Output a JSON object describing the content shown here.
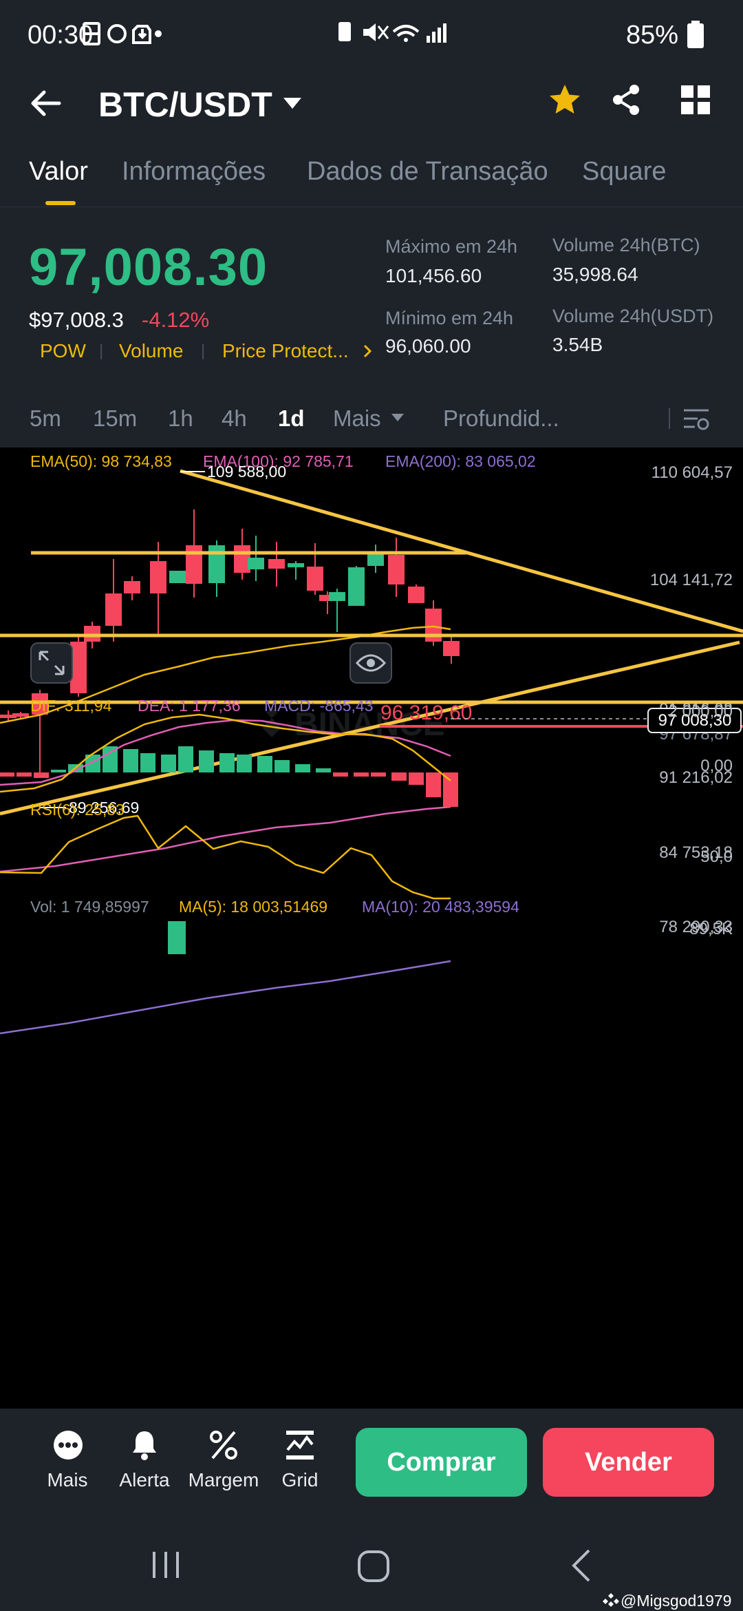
{
  "status_bar": {
    "time": "00:30",
    "battery": "85%"
  },
  "header": {
    "pair": "BTC/USDT"
  },
  "tabs": [
    {
      "label": "Valor",
      "active": true
    },
    {
      "label": "Informações"
    },
    {
      "label": "Dados de Transação"
    },
    {
      "label": "Square"
    }
  ],
  "summary": {
    "price": "97,008.30",
    "usd_price": "$97,008.3",
    "change": "-4.12%",
    "tags": [
      "POW",
      "Volume",
      "Price Protect..."
    ],
    "high_label": "Máximo em 24h",
    "high_value": "101,456.60",
    "low_label": "Mínimo em 24h",
    "low_value": "96,060.00",
    "vol_btc_label": "Volume 24h(BTC)",
    "vol_btc_value": "35,998.64",
    "vol_usdt_label": "Volume 24h(USDT)",
    "vol_usdt_value": "3.54B"
  },
  "intervals": [
    "5m",
    "15m",
    "1h",
    "4h",
    "1d",
    "Mais",
    "Profundid..."
  ],
  "active_interval": "1d",
  "chart_labels": {
    "ema50": "EMA(50): 98 734,83",
    "ema100": "EMA(100): 92 785,71",
    "ema200": "EMA(200): 83 065,02",
    "high_marker": "109 588,00",
    "low_marker": "89 256,69",
    "alert_price": "96 319,60",
    "last_price": "97 008,30",
    "axis_partial": "97 678,87",
    "y_axis": [
      "110 604,57",
      "104 141,72",
      "91 216,02",
      "84 753,18",
      "78 290,33"
    ],
    "watermark": "BINANCE",
    "dif": "DIF: 311,94",
    "dea": "DEA: 1 177,36",
    "macd": "MACD: -865,43",
    "macd_axis": [
      "2 000,00",
      "0,00"
    ],
    "rsi": "RSI(6): 25,83",
    "rsi_axis": "50,0",
    "vol": "Vol: 1 749,85997",
    "vol_ma5": "MA(5): 18 003,51469",
    "vol_ma10": "MA(10): 20 483,39594",
    "vol_axis": "89,5K"
  },
  "colors": {
    "up": "#2ebd85",
    "down": "#f6465d",
    "accent": "#f0b90b",
    "ema50": "#f0b90b",
    "ema100": "#e05fb5",
    "ema200": "#8e6fd0"
  },
  "bottom_nav": [
    "Mais",
    "Alerta",
    "Margem",
    "Grid"
  ],
  "buy_label": "Comprar",
  "sell_label": "Vender",
  "watermark_user": "@Migsgod1979"
}
